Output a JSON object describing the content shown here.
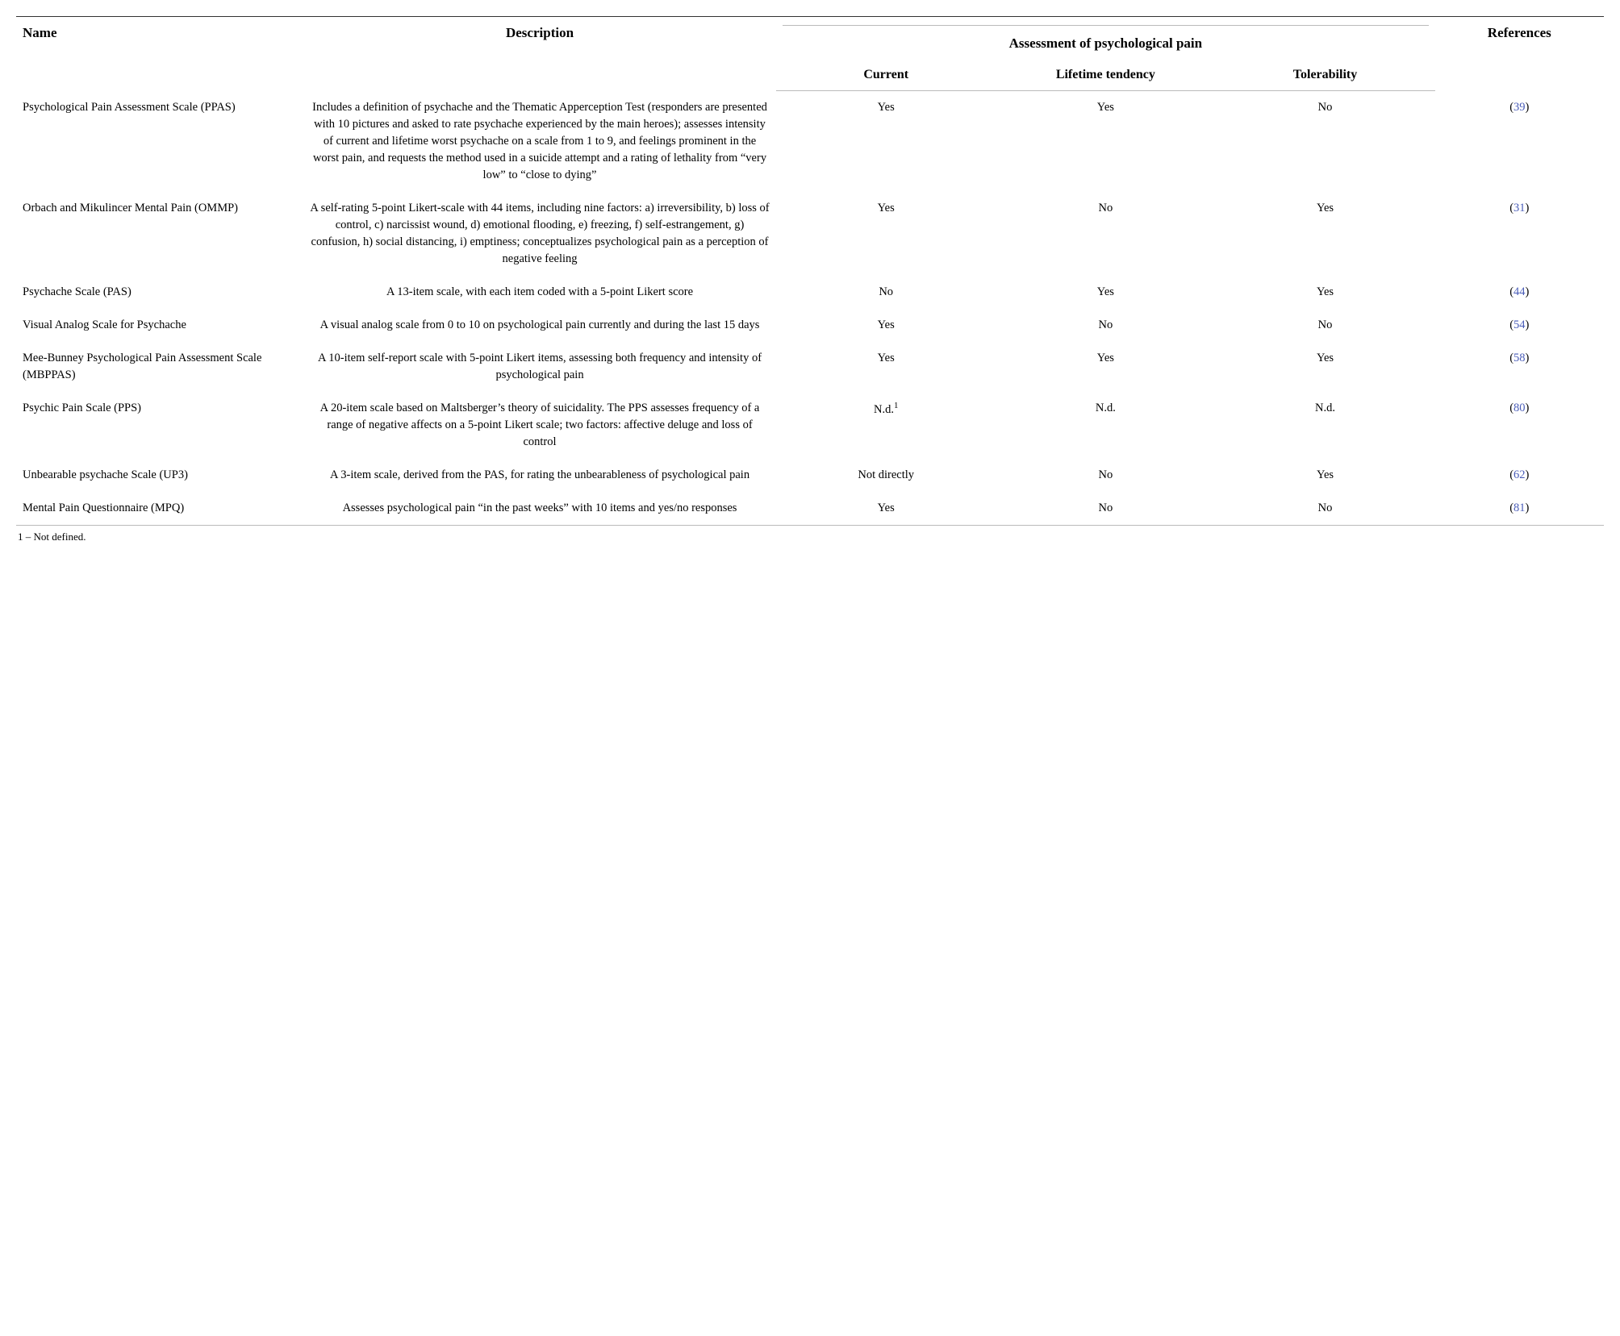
{
  "table": {
    "headers": {
      "name": "Name",
      "description": "Description",
      "assessment_group": "Assessment of psychological pain",
      "current": "Current",
      "lifetime": "Lifetime tendency",
      "tolerability": "Tolerability",
      "references": "References"
    },
    "rows": [
      {
        "name": "Psychological Pain Assessment Scale (PPAS)",
        "description": "Includes a definition of psychache and the Thematic Apperception Test (responders are presented with 10 pictures and asked to rate psychache experienced by the main heroes); assesses intensity of current and lifetime worst psychache on a scale from 1 to 9, and feelings prominent in the worst pain, and requests the method used in a suicide attempt and a rating of lethality from “very low” to “close to dying”",
        "current": "Yes",
        "lifetime": "Yes",
        "tolerability": "No",
        "ref": "39"
      },
      {
        "name": "Orbach and Mikulincer Mental Pain (OMMP)",
        "description": "A self-rating 5-point Likert-scale with 44 items, including nine factors: a) irreversibility, b) loss of control, c) narcissist wound, d) emotional flooding, e) freezing, f) self-estrangement, g) confusion, h) social distancing, i) emptiness; conceptualizes psychological pain as a perception of negative feeling",
        "current": "Yes",
        "lifetime": "No",
        "tolerability": "Yes",
        "ref": "31"
      },
      {
        "name": "Psychache Scale (PAS)",
        "description": "A 13-item scale, with each item coded with a 5-point Likert score",
        "current": "No",
        "lifetime": "Yes",
        "tolerability": "Yes",
        "ref": "44"
      },
      {
        "name": "Visual Analog Scale for Psychache",
        "description": "A visual analog scale from 0 to 10 on psychological pain currently and during the last 15 days",
        "current": "Yes",
        "lifetime": "No",
        "tolerability": "No",
        "ref": "54"
      },
      {
        "name": "Mee-Bunney Psychological Pain Assessment Scale (MBPPAS)",
        "description": "A 10-item self-report scale with 5-point Likert items, assessing both frequency and intensity of psychological pain",
        "current": "Yes",
        "lifetime": "Yes",
        "tolerability": "Yes",
        "ref": "58"
      },
      {
        "name": "Psychic Pain Scale (PPS)",
        "description": "A 20-item scale based on Maltsberger’s theory of suicidality. The PPS assesses frequency of a range of negative affects on a 5-point Likert scale; two factors: affective deluge and loss of control",
        "current": "N.d.",
        "current_sup": "1",
        "lifetime": "N.d.",
        "tolerability": "N.d.",
        "ref": "80"
      },
      {
        "name": "Unbearable psychache Scale (UP3)",
        "description": "A 3-item scale, derived from the PAS, for rating the unbearableness of psychological pain",
        "current": "Not directly",
        "lifetime": "No",
        "tolerability": "Yes",
        "ref": "62"
      },
      {
        "name": "Mental Pain Questionnaire (MPQ)",
        "description": "Assesses psychological pain “in the past weeks” with 10 items and yes/no responses",
        "current": "Yes",
        "lifetime": "No",
        "tolerability": "No",
        "ref": "81"
      }
    ],
    "footnote": "1 – Not defined."
  },
  "styling": {
    "background_color": "#ffffff",
    "text_color": "#000000",
    "ref_link_color": "#4a5db8",
    "border_color_top": "#333333",
    "border_color_light": "#bbbbbb",
    "font_family": "Georgia, Times New Roman, serif",
    "header_fontsize": 17,
    "subheader_fontsize": 16,
    "body_fontsize": 14.5,
    "footnote_fontsize": 13,
    "line_height": 1.45
  }
}
